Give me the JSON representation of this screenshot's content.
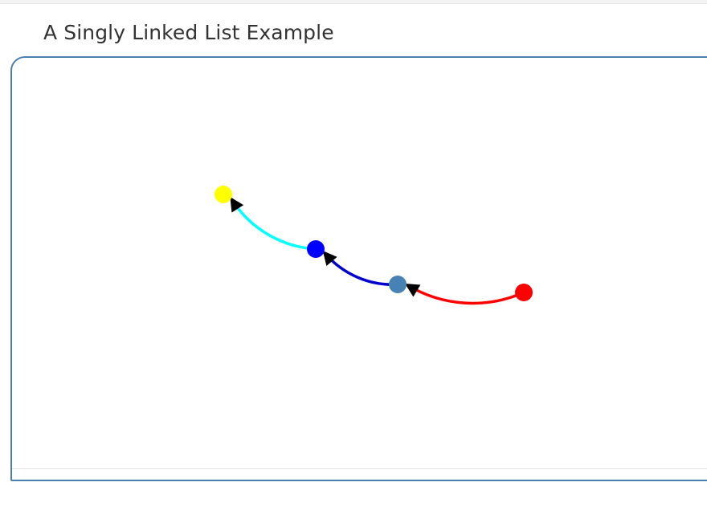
{
  "page": {
    "title": "A Singly Linked List Example"
  },
  "diagram": {
    "nodes": [
      {
        "id": "n1",
        "color": "#ffff00"
      },
      {
        "id": "n2",
        "color": "#0000ff"
      },
      {
        "id": "n3",
        "color": "#4682b4"
      },
      {
        "id": "n4",
        "color": "#ff0000"
      }
    ],
    "links": [
      {
        "from": "n2",
        "to": "n1",
        "color": "#00ffff"
      },
      {
        "from": "n3",
        "to": "n2",
        "color": "#0000cd"
      },
      {
        "from": "n4",
        "to": "n3",
        "color": "#ff0000"
      }
    ],
    "arrowhead_color": "#000000"
  }
}
